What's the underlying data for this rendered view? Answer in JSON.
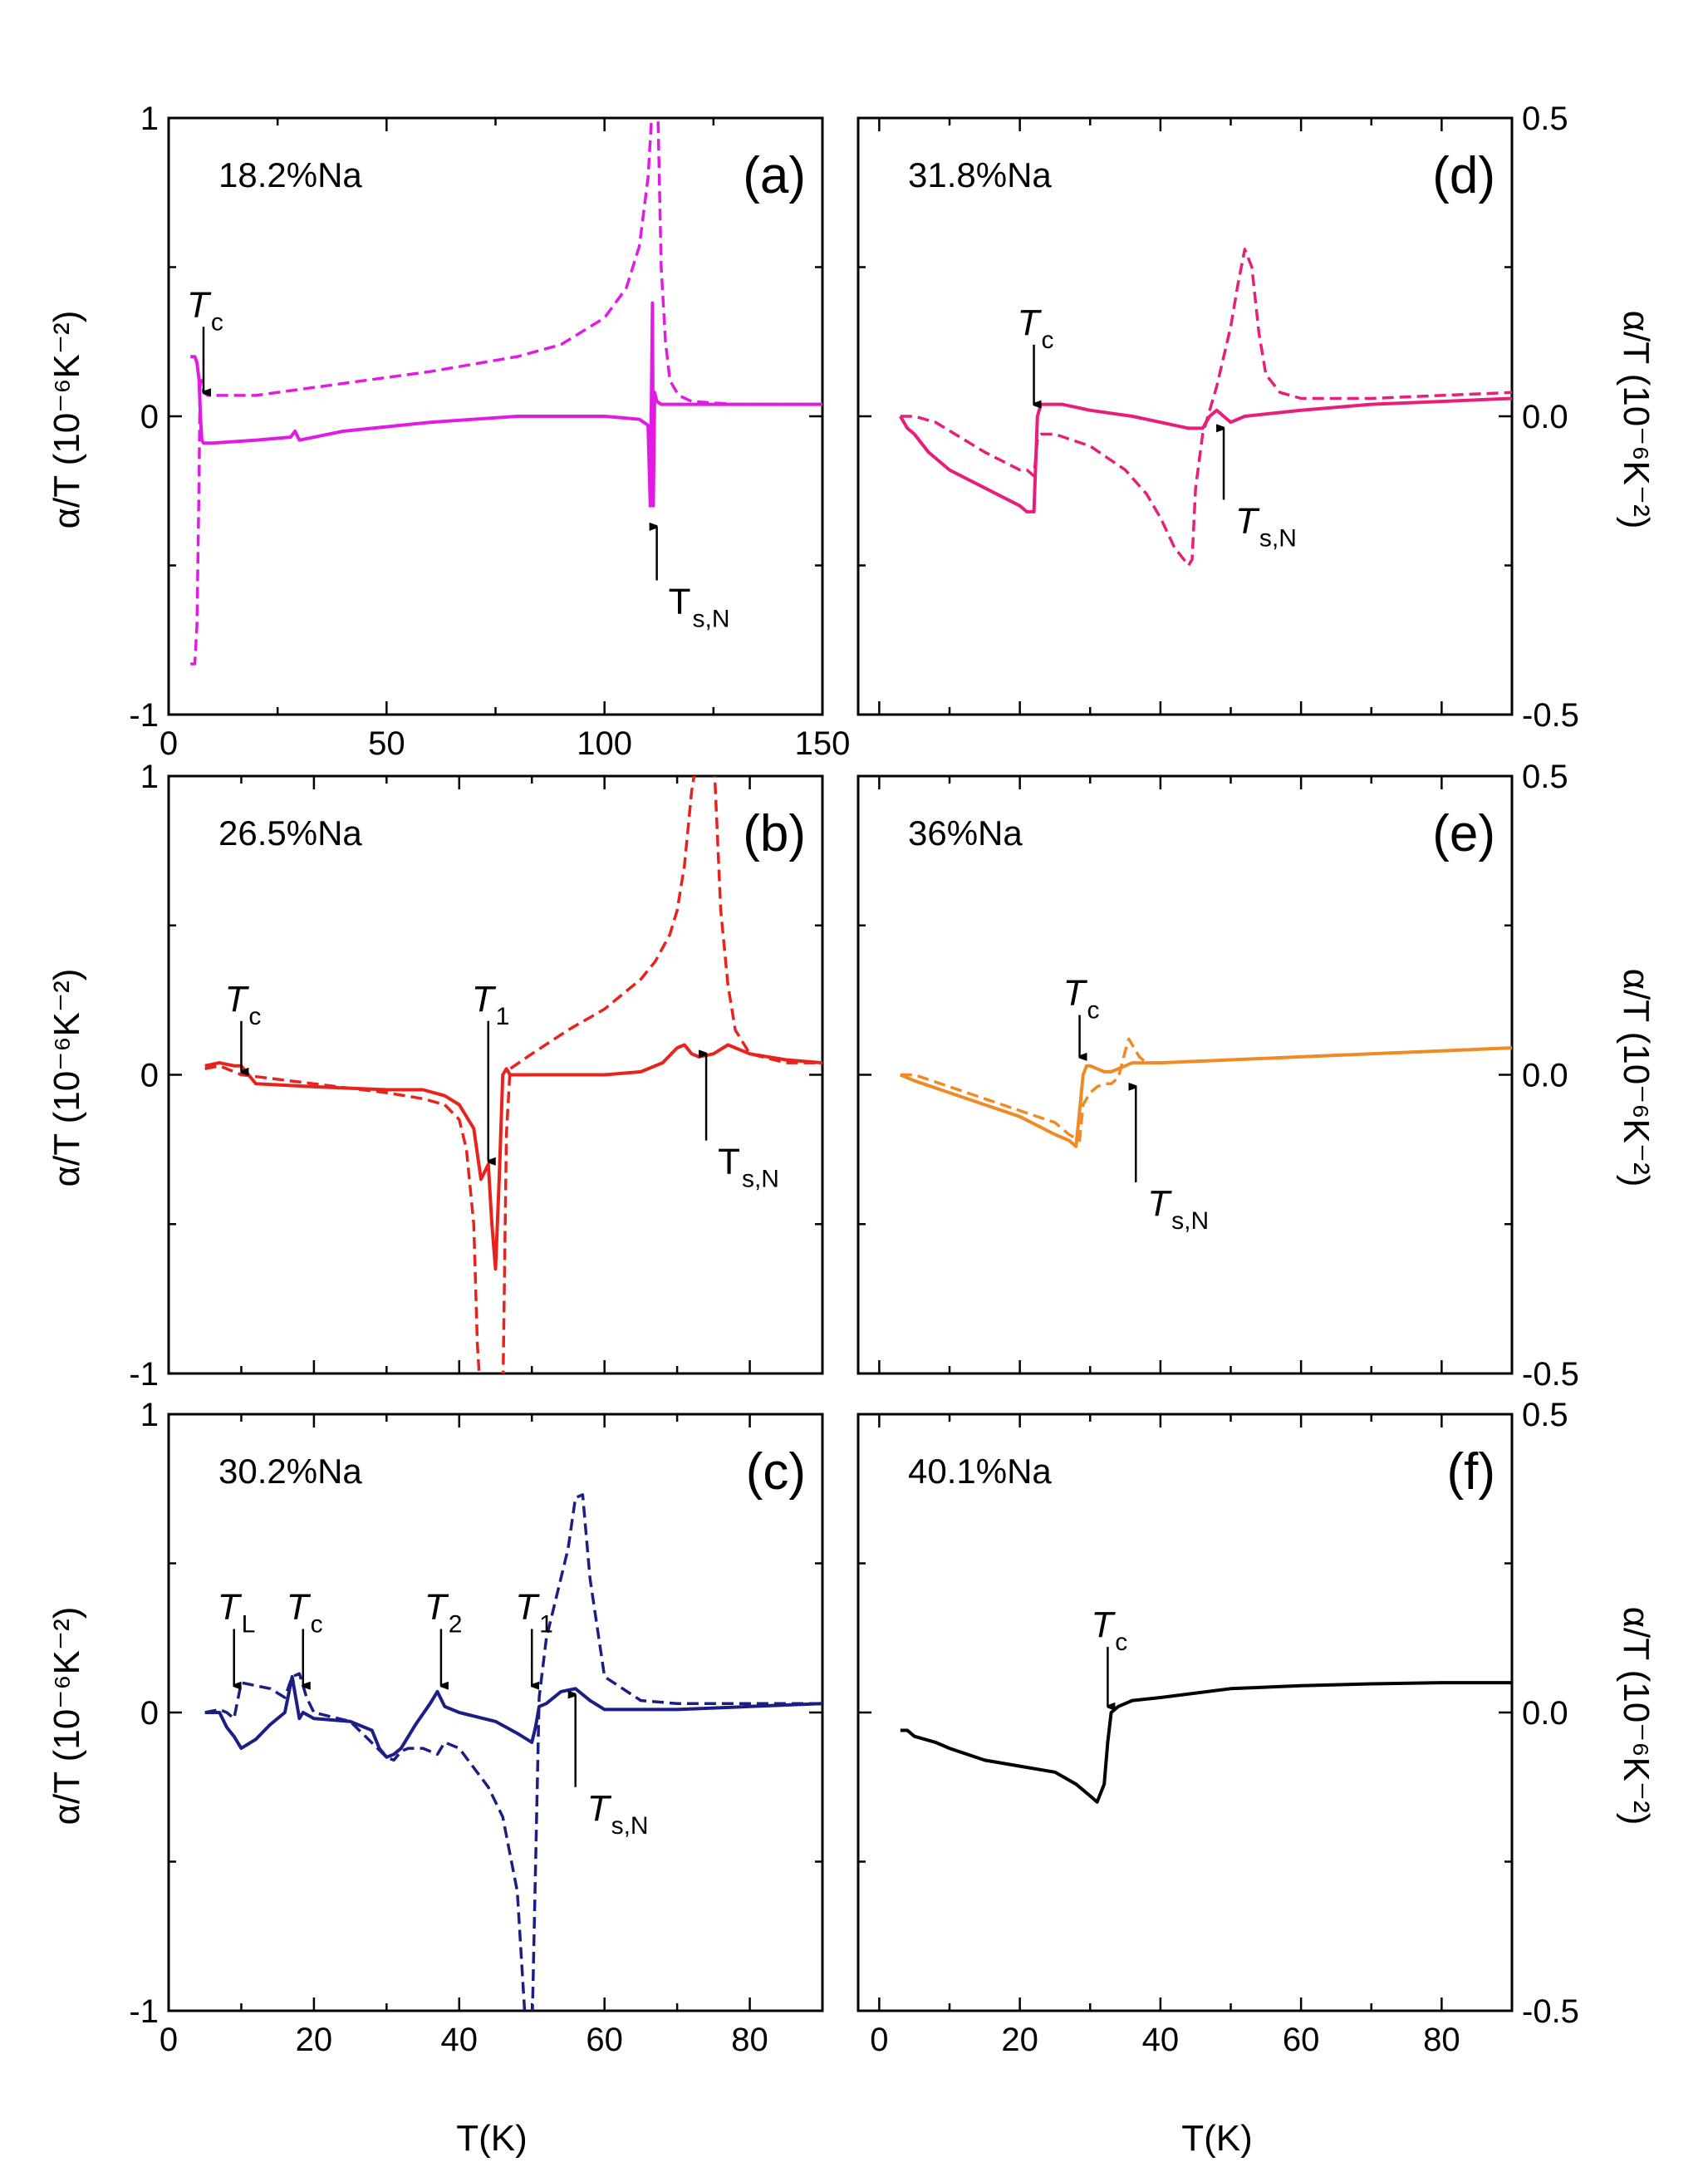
{
  "figure": {
    "x_axis_label": "T(K)",
    "y_axis_label_left": "α/T (10⁻⁶K⁻²)",
    "y_axis_label_right": "α/T (10⁻⁶K⁻²)"
  },
  "chart_data": [
    {
      "id": "a",
      "panel_label": "(a)",
      "sample": "18.2%Na",
      "color": "#e11be3",
      "type": "line",
      "xlim": [
        0,
        150
      ],
      "ylim": [
        -1,
        1
      ],
      "xticks": [
        0,
        50,
        100,
        150
      ],
      "xtick_labels": [
        "0",
        "50",
        "100",
        "150"
      ],
      "yticks": [
        -1,
        0,
        1
      ],
      "ytick_labels": [
        "-1",
        "0",
        "1"
      ],
      "series": [
        {
          "style": "solid",
          "x": [
            5,
            6,
            6.5,
            7,
            7.3,
            7.6,
            8,
            10,
            20,
            28,
            29,
            30,
            40,
            60,
            80,
            100,
            108,
            110,
            110.5,
            111,
            111.2,
            111.5,
            112,
            113,
            115,
            120,
            130,
            150
          ],
          "y": [
            0.2,
            0.2,
            0.18,
            0.12,
            0,
            -0.08,
            -0.09,
            -0.09,
            -0.08,
            -0.07,
            -0.05,
            -0.08,
            -0.05,
            -0.02,
            0,
            0,
            -0.01,
            -0.03,
            -0.3,
            0.38,
            -0.3,
            0.08,
            0.05,
            0.04,
            0.04,
            0.04,
            0.04,
            0.04
          ]
        },
        {
          "style": "dashed",
          "x": [
            5,
            6,
            6.5,
            7,
            7.2,
            7.5,
            8,
            9,
            10,
            20,
            40,
            60,
            80,
            90,
            100,
            105,
            108,
            110,
            111,
            112,
            113,
            114,
            115,
            117,
            120,
            130,
            150
          ],
          "y": [
            -0.83,
            -0.83,
            -0.7,
            -0.2,
            0.1,
            0.12,
            0.08,
            0.07,
            0.07,
            0.07,
            0.11,
            0.15,
            0.2,
            0.24,
            0.33,
            0.43,
            0.57,
            0.8,
            1.05,
            1.2,
            0.5,
            0.25,
            0.12,
            0.07,
            0.05,
            0.04,
            0.04
          ]
        }
      ],
      "annotations": [
        {
          "main": "T",
          "sub": "c",
          "italic": true,
          "arrow_x": 8,
          "arrow_from": 0.3,
          "arrow_to": 0.08,
          "direction": "down"
        },
        {
          "main": "T",
          "sub": "s,N",
          "italic": false,
          "arrow_x": 112,
          "arrow_from": -0.55,
          "arrow_to": -0.37,
          "direction": "up"
        }
      ]
    },
    {
      "id": "b",
      "panel_label": "(b)",
      "sample": "26.5%Na",
      "color": "#e8231d",
      "type": "line",
      "xlim": [
        0,
        90
      ],
      "ylim": [
        -1,
        1
      ],
      "xticks": [
        0,
        20,
        40,
        60,
        80
      ],
      "xtick_labels": [],
      "yticks": [
        -1,
        0,
        1
      ],
      "ytick_labels": [
        "-1",
        "0",
        "1"
      ],
      "series": [
        {
          "style": "solid",
          "x": [
            5,
            7,
            9,
            10,
            12,
            20,
            30,
            35,
            38,
            40,
            42,
            43,
            44,
            44.5,
            45,
            45.5,
            46,
            46.5,
            47,
            50,
            60,
            65,
            68,
            70,
            71,
            72,
            73,
            75,
            77,
            80,
            85,
            90
          ],
          "y": [
            0.03,
            0.04,
            0.03,
            0.03,
            -0.03,
            -0.04,
            -0.05,
            -0.05,
            -0.07,
            -0.1,
            -0.18,
            -0.35,
            -0.3,
            -0.5,
            -0.65,
            -0.35,
            0,
            0.02,
            0,
            0,
            0,
            0.01,
            0.04,
            0.09,
            0.1,
            0.07,
            0.06,
            0.07,
            0.1,
            0.07,
            0.05,
            0.04
          ]
        },
        {
          "style": "dashed",
          "x": [
            5,
            7,
            10,
            20,
            30,
            35,
            38,
            40,
            41,
            42,
            42.5,
            43,
            43.5,
            44,
            45,
            45.5,
            46,
            46.5,
            47,
            50,
            55,
            60,
            65,
            67,
            69,
            70,
            71,
            72,
            73,
            74,
            75,
            76,
            77,
            78,
            80,
            85,
            90
          ],
          "y": [
            0.02,
            0.03,
            0,
            -0.03,
            -0.06,
            -0.08,
            -0.1,
            -0.15,
            -0.25,
            -0.5,
            -0.9,
            -1.1,
            -1.1,
            -1.1,
            -1.1,
            -1.1,
            -1.1,
            -0.2,
            0.02,
            0.07,
            0.15,
            0.22,
            0.32,
            0.38,
            0.47,
            0.55,
            0.7,
            0.95,
            1.1,
            1.1,
            1.1,
            0.55,
            0.3,
            0.15,
            0.07,
            0.04,
            0.04
          ]
        }
      ],
      "annotations": [
        {
          "main": "T",
          "sub": "c",
          "italic": true,
          "arrow_x": 10,
          "arrow_from": 0.18,
          "arrow_to": 0.01,
          "direction": "down"
        },
        {
          "main": "T",
          "sub": "1",
          "italic": true,
          "arrow_x": 44,
          "arrow_from": 0.18,
          "arrow_to": -0.29,
          "direction": "down"
        },
        {
          "main": "T",
          "sub": "s,N",
          "italic": false,
          "arrow_x": 74,
          "arrow_from": -0.22,
          "arrow_to": 0.07,
          "direction": "up"
        }
      ]
    },
    {
      "id": "c",
      "panel_label": "(c)",
      "sample": "30.2%Na",
      "color": "#1b1f84",
      "type": "line",
      "xlim": [
        0,
        90
      ],
      "ylim": [
        -1,
        1
      ],
      "xticks": [
        0,
        20,
        40,
        60,
        80
      ],
      "xtick_labels": [
        "0",
        "20",
        "40",
        "60",
        "80"
      ],
      "yticks": [
        -1,
        0,
        1
      ],
      "ytick_labels": [
        "-1",
        "0",
        "1"
      ],
      "series": [
        {
          "style": "solid",
          "x": [
            5,
            7,
            8,
            9,
            10,
            12,
            14,
            16,
            17,
            17.5,
            18,
            18.5,
            20,
            25,
            28,
            29,
            30,
            31,
            32,
            34,
            36,
            37,
            38,
            40,
            45,
            48,
            50,
            50.5,
            51,
            52,
            54,
            56,
            58,
            60,
            70,
            80,
            90
          ],
          "y": [
            0,
            0,
            -0.05,
            -0.08,
            -0.12,
            -0.09,
            -0.04,
            0,
            0.12,
            0.05,
            -0.02,
            0,
            -0.02,
            -0.03,
            -0.06,
            -0.12,
            -0.15,
            -0.14,
            -0.12,
            -0.04,
            0.03,
            0.07,
            0.02,
            0,
            -0.03,
            -0.07,
            -0.1,
            -0.05,
            0.02,
            0.03,
            0.07,
            0.08,
            0.04,
            0.01,
            0.01,
            0.02,
            0.03
          ]
        },
        {
          "style": "dashed",
          "x": [
            5,
            7,
            8,
            9,
            10,
            14,
            16,
            17,
            18,
            19,
            20,
            25,
            30,
            31,
            32,
            33,
            35,
            37,
            38,
            40,
            44,
            46,
            48,
            49,
            49.5,
            50,
            51,
            52,
            53,
            54,
            55,
            56,
            57,
            58,
            60,
            65,
            70,
            80,
            90
          ],
          "y": [
            0,
            0.01,
            0,
            -0.02,
            0.1,
            0.08,
            0.05,
            0.12,
            0.13,
            0.05,
            0,
            -0.03,
            -0.15,
            -0.16,
            -0.13,
            -0.12,
            -0.12,
            -0.14,
            -0.1,
            -0.12,
            -0.25,
            -0.35,
            -0.6,
            -1.0,
            -1.1,
            -1.1,
            0.05,
            0.25,
            0.35,
            0.45,
            0.55,
            0.72,
            0.73,
            0.45,
            0.12,
            0.04,
            0.03,
            0.03,
            0.03
          ]
        }
      ],
      "annotations": [
        {
          "main": "T",
          "sub": "L",
          "italic": true,
          "arrow_x": 9,
          "arrow_from": 0.28,
          "arrow_to": 0.09,
          "direction": "down"
        },
        {
          "main": "T",
          "sub": "c",
          "italic": true,
          "arrow_x": 18.5,
          "arrow_from": 0.28,
          "arrow_to": 0.09,
          "direction": "down"
        },
        {
          "main": "T",
          "sub": "2",
          "italic": true,
          "arrow_x": 37.5,
          "arrow_from": 0.28,
          "arrow_to": 0.09,
          "direction": "down"
        },
        {
          "main": "T",
          "sub": "1",
          "italic": true,
          "arrow_x": 50,
          "arrow_from": 0.28,
          "arrow_to": 0.09,
          "direction": "down"
        },
        {
          "main": "T",
          "sub": "s,N",
          "italic": true,
          "arrow_x": 56,
          "arrow_from": -0.25,
          "arrow_to": 0.06,
          "direction": "up"
        }
      ]
    },
    {
      "id": "d",
      "panel_label": "(d)",
      "sample": "31.8%Na",
      "color": "#e81e7a",
      "type": "line",
      "xlim": [
        -3,
        90
      ],
      "ylim": [
        -0.5,
        0.5
      ],
      "right_axis": true,
      "xticks": [
        0,
        20,
        40,
        60,
        80
      ],
      "xtick_labels": [],
      "yticks": [
        -0.5,
        0,
        0.5
      ],
      "ytick_labels": [
        "-0.5",
        "0.0",
        "0.5"
      ],
      "series": [
        {
          "style": "solid",
          "x": [
            3,
            4,
            5,
            7,
            10,
            15,
            20,
            21,
            22,
            22.5,
            23,
            24,
            26,
            30,
            36,
            40,
            44,
            46,
            47,
            48,
            49,
            50,
            52,
            60,
            70,
            80,
            90
          ],
          "y": [
            0,
            -0.02,
            -0.03,
            -0.06,
            -0.09,
            -0.12,
            -0.15,
            -0.16,
            -0.16,
            0,
            0.02,
            0.02,
            0.02,
            0.01,
            0,
            -0.01,
            -0.02,
            -0.02,
            0,
            0.01,
            0,
            -0.01,
            0,
            0.01,
            0.02,
            0.025,
            0.03
          ]
        },
        {
          "style": "dashed",
          "x": [
            3,
            5,
            8,
            15,
            20,
            21,
            22,
            22.5,
            23,
            25,
            30,
            35,
            38,
            40,
            42,
            44,
            44.5,
            45,
            46,
            48,
            50,
            51,
            52,
            53,
            54,
            55,
            57,
            60,
            70,
            80,
            90
          ],
          "y": [
            0,
            0,
            -0.01,
            -0.06,
            -0.09,
            -0.09,
            -0.1,
            -0.04,
            -0.03,
            -0.03,
            -0.05,
            -0.09,
            -0.13,
            -0.17,
            -0.22,
            -0.25,
            -0.24,
            -0.12,
            -0.03,
            0.05,
            0.15,
            0.22,
            0.28,
            0.25,
            0.14,
            0.07,
            0.04,
            0.03,
            0.03,
            0.035,
            0.04
          ]
        }
      ],
      "annotations": [
        {
          "main": "T",
          "sub": "c",
          "italic": true,
          "arrow_x": 22,
          "arrow_from": 0.12,
          "arrow_to": 0.02,
          "direction": "down"
        },
        {
          "main": "T",
          "sub": "s,N",
          "italic": true,
          "arrow_x": 49,
          "arrow_from": -0.14,
          "arrow_to": -0.02,
          "direction": "up"
        }
      ]
    },
    {
      "id": "e",
      "panel_label": "(e)",
      "sample": "36%Na",
      "color": "#f08a24",
      "type": "line",
      "xlim": [
        -3,
        90
      ],
      "ylim": [
        -0.5,
        0.5
      ],
      "right_axis": true,
      "xticks": [
        0,
        20,
        40,
        60,
        80
      ],
      "xtick_labels": [],
      "yticks": [
        -0.5,
        0,
        0.5
      ],
      "ytick_labels": [
        "-0.5",
        "0.0",
        "0.5"
      ],
      "series": [
        {
          "style": "solid",
          "x": [
            3,
            5,
            10,
            15,
            20,
            25,
            27,
            28,
            28.5,
            29,
            29.5,
            30,
            31,
            32,
            33,
            34,
            35,
            36,
            37,
            40,
            50,
            60,
            70,
            80,
            90
          ],
          "y": [
            0,
            -0.01,
            -0.03,
            -0.05,
            -0.07,
            -0.1,
            -0.11,
            -0.12,
            -0.06,
            0,
            0.015,
            0.015,
            0.01,
            0.005,
            0.005,
            0.01,
            0.015,
            0.02,
            0.02,
            0.02,
            0.025,
            0.03,
            0.035,
            0.04,
            0.045
          ]
        },
        {
          "style": "dashed",
          "x": [
            3,
            5,
            10,
            15,
            20,
            25,
            27,
            28.5,
            29,
            30,
            31,
            32,
            33,
            34,
            35,
            35.5,
            36,
            37,
            38,
            40,
            50,
            60,
            70,
            80,
            90
          ],
          "y": [
            0,
            0,
            -0.02,
            -0.04,
            -0.06,
            -0.08,
            -0.1,
            -0.11,
            -0.05,
            -0.03,
            -0.02,
            -0.015,
            -0.015,
            -0.005,
            0.04,
            0.06,
            0.05,
            0.03,
            0.02,
            0.02,
            0.025,
            0.03,
            0.035,
            0.04,
            0.045
          ]
        }
      ],
      "annotations": [
        {
          "main": "T",
          "sub": "c",
          "italic": true,
          "arrow_x": 28.5,
          "arrow_from": 0.1,
          "arrow_to": 0.03,
          "direction": "down"
        },
        {
          "main": "T",
          "sub": "s,N",
          "italic": true,
          "arrow_x": 36.5,
          "arrow_from": -0.18,
          "arrow_to": -0.02,
          "direction": "up"
        }
      ]
    },
    {
      "id": "f",
      "panel_label": "(f)",
      "sample": "40.1%Na",
      "color": "#000000",
      "type": "line",
      "xlim": [
        -3,
        90
      ],
      "ylim": [
        -0.5,
        0.5
      ],
      "right_axis": true,
      "xticks": [
        0,
        20,
        40,
        60,
        80
      ],
      "xtick_labels": [
        "0",
        "20",
        "40",
        "60",
        "80"
      ],
      "yticks": [
        -0.5,
        0,
        0.5
      ],
      "ytick_labels": [
        "-0.5",
        "0.0",
        "0.5"
      ],
      "series": [
        {
          "style": "solid",
          "x": [
            3,
            4,
            5,
            8,
            10,
            15,
            20,
            25,
            28,
            30,
            31,
            32,
            32.5,
            33,
            34,
            36,
            40,
            50,
            60,
            70,
            80,
            90
          ],
          "y": [
            -0.03,
            -0.03,
            -0.04,
            -0.05,
            -0.06,
            -0.08,
            -0.09,
            -0.1,
            -0.12,
            -0.14,
            -0.15,
            -0.12,
            -0.05,
            0,
            0.01,
            0.02,
            0.025,
            0.04,
            0.045,
            0.048,
            0.05,
            0.05
          ]
        }
      ],
      "annotations": [
        {
          "main": "T",
          "sub": "c",
          "italic": true,
          "arrow_x": 32.5,
          "arrow_from": 0.11,
          "arrow_to": 0.01,
          "direction": "down"
        }
      ]
    }
  ]
}
